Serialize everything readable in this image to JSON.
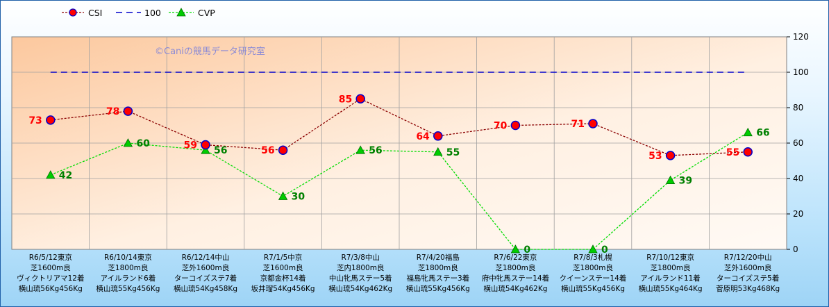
{
  "chart_data": {
    "type": "line",
    "watermark": "©Caniの競馬データ研究室",
    "categories": [
      [
        "R6/5/12東京",
        "芝1600m良",
        "ヴィクトリアマ12着",
        "横山琉56Kg456Kg"
      ],
      [
        "R6/10/14東京",
        "芝1800m良",
        "アイルランド6着",
        "横山琉55Kg456Kg"
      ],
      [
        "R6/12/14中山",
        "芝外1600m良",
        "ターコイズステ7着",
        "横山琉54Kg458Kg"
      ],
      [
        "R7/1/5中京",
        "芝1600m良",
        "京都金杯14着",
        "坂井瑠54Kg456Kg"
      ],
      [
        "R7/3/8中山",
        "芝内1800m良",
        "中山牝馬ステー5着",
        "横山琉54Kg462Kg"
      ],
      [
        "R7/4/20福島",
        "芝1800m良",
        "福島牝馬ステー3着",
        "横山琉55Kg456Kg"
      ],
      [
        "R7/6/22東京",
        "芝1800m良",
        "府中牝馬ステー14着",
        "横山琉54Kg462Kg"
      ],
      [
        "R7/8/3札幌",
        "芝1800m良",
        "クイーンステー14着",
        "横山琉55Kg456Kg"
      ],
      [
        "R7/10/12東京",
        "芝1800m良",
        "アイルランド11着",
        "横山琉55Kg464Kg"
      ],
      [
        "R7/12/20中山",
        "芝外1600m良",
        "ターコイズステ5着",
        "菅原明53Kg468Kg"
      ]
    ],
    "series": [
      {
        "name": "CSI",
        "values": [
          73,
          78,
          59,
          56,
          85,
          64,
          70,
          71,
          53,
          55
        ],
        "color": "#8b0000",
        "marker_fill": "#ff0000",
        "marker_edge": "#0000cc",
        "label_color": "#ff0000"
      },
      {
        "name": "100",
        "values": [
          100,
          100,
          100,
          100,
          100,
          100,
          100,
          100,
          100,
          100
        ],
        "color": "#0000cc"
      },
      {
        "name": "CVP",
        "values": [
          42,
          60,
          56,
          30,
          56,
          55,
          0,
          0,
          39,
          66
        ],
        "color": "#00dd00",
        "marker_fill": "#00cc00",
        "label_color": "#008000"
      }
    ],
    "y_axis": {
      "position": "right",
      "min": 0,
      "max": 120,
      "ticks": [
        0,
        20,
        40,
        60,
        80,
        100,
        120
      ]
    },
    "grid": true,
    "legend": "top-left"
  }
}
